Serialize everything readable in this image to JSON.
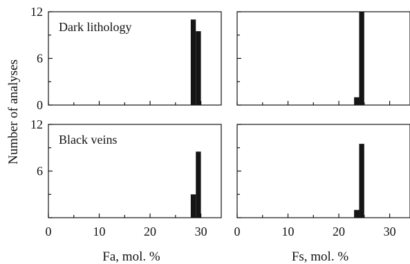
{
  "ylabel": "Number of analyses",
  "colors": {
    "bar": "#151515",
    "axis": "#111111"
  },
  "chart_data": [
    {
      "type": "bar",
      "panel_label": "Dark lithology",
      "xlabel": "",
      "xlim": [
        0,
        34
      ],
      "ylim": [
        0,
        12
      ],
      "x_tick_values": [
        0,
        10,
        20,
        30
      ],
      "x_tick_labels": [],
      "y_tick_labels": [
        "0",
        "6",
        "12"
      ],
      "bin_width": 1,
      "bins": [
        {
          "x": 28,
          "count": 11
        },
        {
          "x": 29,
          "count": 9.5
        }
      ]
    },
    {
      "type": "bar",
      "panel_label": "",
      "xlabel": "",
      "xlim": [
        0,
        34
      ],
      "ylim": [
        0,
        12
      ],
      "x_tick_values": [
        0,
        10,
        20,
        30
      ],
      "x_tick_labels": [],
      "y_tick_labels": [],
      "bin_width": 1,
      "bins": [
        {
          "x": 23,
          "count": 1
        },
        {
          "x": 24,
          "count": 12
        }
      ]
    },
    {
      "type": "bar",
      "panel_label": "Black veins",
      "xlabel": "Fa, mol. %",
      "xlim": [
        0,
        34
      ],
      "ylim": [
        0,
        12
      ],
      "x_tick_values": [
        0,
        10,
        20,
        30
      ],
      "x_tick_labels": [
        "0",
        "10",
        "20",
        "30"
      ],
      "y_tick_labels": [
        "",
        "6",
        "12"
      ],
      "bin_width": 1,
      "bins": [
        {
          "x": 28,
          "count": 3
        },
        {
          "x": 29,
          "count": 8.5
        }
      ]
    },
    {
      "type": "bar",
      "panel_label": "",
      "xlabel": "Fs, mol. %",
      "xlim": [
        0,
        34
      ],
      "ylim": [
        0,
        12
      ],
      "x_tick_values": [
        0,
        10,
        20,
        30
      ],
      "x_tick_labels": [
        "0",
        "10",
        "20",
        "30"
      ],
      "y_tick_labels": [],
      "bin_width": 1,
      "bins": [
        {
          "x": 23,
          "count": 1
        },
        {
          "x": 24,
          "count": 9.5
        }
      ]
    }
  ]
}
